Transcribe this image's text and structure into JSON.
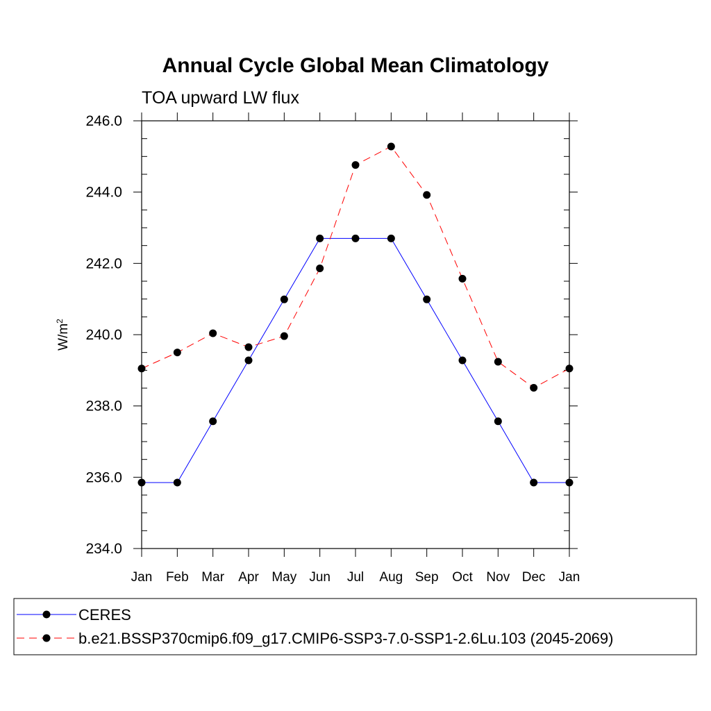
{
  "chart_data": {
    "type": "line",
    "title": "Annual Cycle Global Mean Climatology",
    "subtitle": "TOA upward LW flux",
    "ylabel": "W/m",
    "ylabel_superscript": "2",
    "categories": [
      "Jan",
      "Feb",
      "Mar",
      "Apr",
      "May",
      "Jun",
      "Jul",
      "Aug",
      "Sep",
      "Oct",
      "Nov",
      "Dec",
      "Jan"
    ],
    "ylim": [
      234.0,
      246.0
    ],
    "yticks": [
      234.0,
      236.0,
      238.0,
      240.0,
      242.0,
      244.0,
      246.0
    ],
    "ytick_labels": [
      "234.0",
      "236.0",
      "238.0",
      "240.0",
      "242.0",
      "244.0",
      "246.0"
    ],
    "grid": false,
    "legend_position": "bottom",
    "series": [
      {
        "name": "CERES",
        "color": "#0000ff",
        "dash": "solid",
        "marker": "filled-circle",
        "values": [
          235.85,
          235.85,
          237.57,
          239.28,
          240.99,
          242.7,
          242.7,
          242.7,
          240.99,
          239.28,
          237.57,
          235.85,
          235.85
        ]
      },
      {
        "name": "b.e21.BSSP370cmip6.f09_g17.CMIP6-SSP3-7.0-SSP1-2.6Lu.103 (2045-2069)",
        "color": "#ff0000",
        "dash": "dashed",
        "marker": "filled-circle",
        "values": [
          239.05,
          239.5,
          240.04,
          239.65,
          239.96,
          241.86,
          244.76,
          245.28,
          243.92,
          241.57,
          239.24,
          238.51,
          239.05
        ]
      }
    ]
  }
}
